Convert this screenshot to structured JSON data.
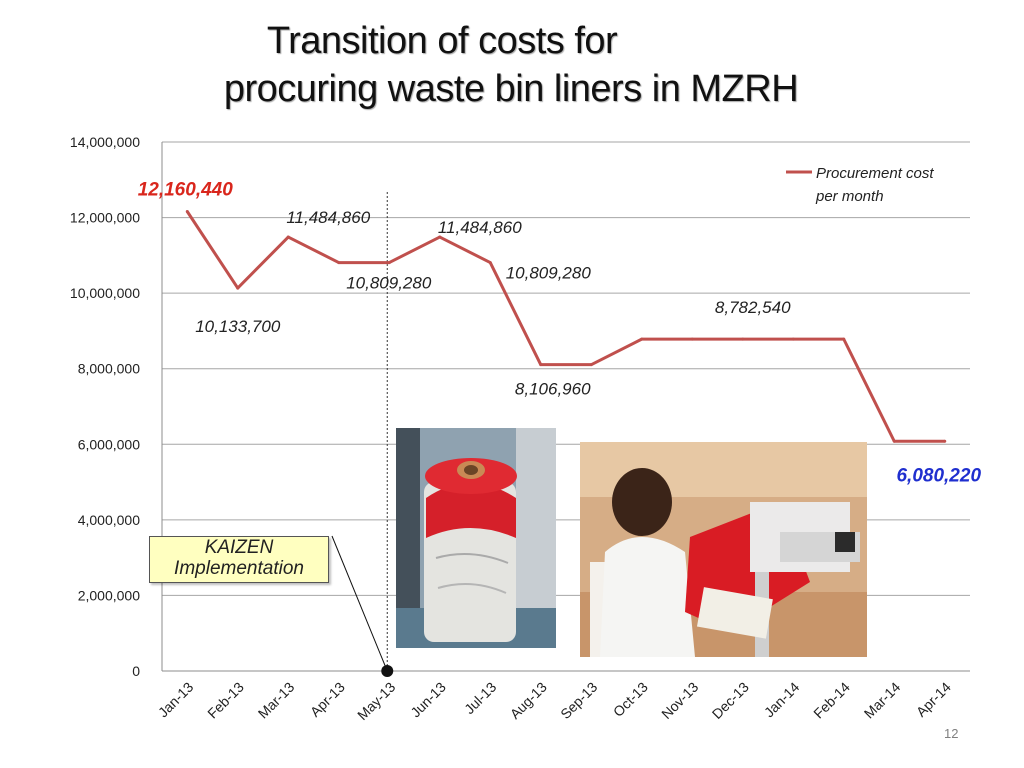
{
  "slide": {
    "title_line1": "Transition of costs for",
    "title_line2": "procuring waste bin liners in MZRH",
    "page_number": "12"
  },
  "annotation": {
    "line1": "KAIZEN",
    "line2": "Implementation",
    "marker_month": "May-13"
  },
  "photos": [
    {
      "name": "rolled-red-bin-liners-photo"
    },
    {
      "name": "staff-sealing-bin-liners-photo"
    }
  ],
  "chart_data": {
    "type": "line",
    "title": "",
    "xlabel": "",
    "ylabel": "",
    "categories": [
      "Jan-13",
      "Feb-13",
      "Mar-13",
      "Apr-13",
      "May-13",
      "Jun-13",
      "Jul-13",
      "Aug-13",
      "Sep-13",
      "Oct-13",
      "Nov-13",
      "Dec-13",
      "Jan-14",
      "Feb-14",
      "Mar-14",
      "Apr-14"
    ],
    "series": [
      {
        "name": "Procurement cost per month",
        "legend_line1": "Procurement cost",
        "legend_line2": "per month",
        "color": "#c0504d",
        "values": [
          12160440,
          10133700,
          11484860,
          10809280,
          10809280,
          11484860,
          10809280,
          8106960,
          8106960,
          8782540,
          8782540,
          8782540,
          8782540,
          8782540,
          6080220,
          6080220
        ]
      }
    ],
    "ylim": [
      0,
      14000000
    ],
    "yticks": [
      0,
      2000000,
      4000000,
      6000000,
      8000000,
      10000000,
      12000000,
      14000000
    ],
    "ytick_labels": [
      "0",
      "2,000,000",
      "4,000,000",
      "6,000,000",
      "8,000,000",
      "10,000,000",
      "12,000,000",
      "14,000,000"
    ],
    "grid": true,
    "legend_position": "top-right",
    "data_labels": [
      {
        "index": 0,
        "text": "12,160,440",
        "color": "#d9261c",
        "emphasis": true
      },
      {
        "index": 1,
        "text": "10,133,700",
        "color": "#222222",
        "emphasis": false
      },
      {
        "index": 2,
        "text": "11,484,860",
        "color": "#222222",
        "emphasis": false
      },
      {
        "index": 3,
        "text": "10,809,280",
        "color": "#222222",
        "emphasis": false
      },
      {
        "index": 5,
        "text": "11,484,860",
        "color": "#222222",
        "emphasis": false
      },
      {
        "index": 6,
        "text": "10,809,280",
        "color": "#222222",
        "emphasis": false
      },
      {
        "index": 7,
        "text": "8,106,960",
        "color": "#222222",
        "emphasis": false
      },
      {
        "index": 11,
        "text": "8,782,540",
        "color": "#222222",
        "emphasis": false
      },
      {
        "index": 15,
        "text": "6,080,220",
        "color": "#1f2fcf",
        "emphasis": true
      }
    ]
  }
}
